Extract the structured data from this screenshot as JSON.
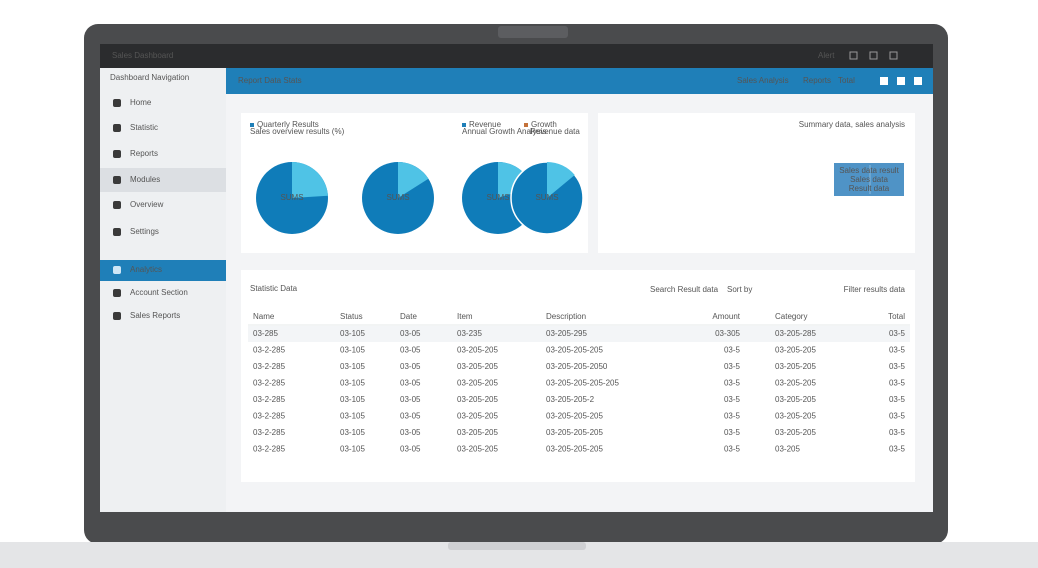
{
  "topbar": {
    "title": "Sales Dashboard",
    "items": [
      "Alert"
    ]
  },
  "sidebar": {
    "header": "Dashboard Navigation",
    "items": [
      "Home",
      "Statistic",
      "Reports",
      "Modules",
      "Overview",
      "Settings"
    ],
    "active": "Analytics",
    "extra": [
      "Account Section",
      "Sales Reports"
    ]
  },
  "header": {
    "title": "Report Data Stats",
    "links": [
      "Sales Analysis",
      "Reports",
      "Total"
    ]
  },
  "pie_card": {
    "legend": [
      "Quarterly Results",
      "Revenue",
      "Growth"
    ],
    "legend_sub": [
      "Sales overview results (%)",
      "Annual Growth Analysis",
      "Revenue data"
    ]
  },
  "pies": [
    {
      "label": "SUMS",
      "value": 24
    },
    {
      "label": "SUMS",
      "value": 16
    },
    {
      "label": "SUMS",
      "value": 20
    },
    {
      "label": "SUMS",
      "value": 14
    }
  ],
  "summary_card": {
    "title": "Summary data, sales analysis",
    "box": [
      "Sales data result",
      "Sales data",
      "Result data"
    ]
  },
  "table": {
    "title": "Statistic Data",
    "controls": [
      "Search Result data",
      "Sort by",
      "Filter results data"
    ],
    "columns": [
      "Name",
      "Status",
      "Date",
      "Item",
      "Description",
      "Amount",
      "Category",
      "Total"
    ],
    "rows": [
      [
        "03-285",
        "03-105",
        "03-05",
        "03-235",
        "03-205-295",
        "03-305",
        "03-205-285",
        "03-5"
      ],
      [
        "03-2-285",
        "03-105",
        "03-05",
        "03-205-205",
        "03-205-205-205",
        "03-5",
        "03-205-205",
        "03-5"
      ],
      [
        "03-2-285",
        "03-105",
        "03-05",
        "03-205-205",
        "03-205-205-2050",
        "03-5",
        "03-205-205",
        "03-5"
      ],
      [
        "03-2-285",
        "03-105",
        "03-05",
        "03-205-205",
        "03-205-205-205-205",
        "03-5",
        "03-205-205",
        "03-5"
      ],
      [
        "03-2-285",
        "03-105",
        "03-05",
        "03-205-205",
        "03-205-205-2",
        "03-5",
        "03-205-205",
        "03-5"
      ],
      [
        "03-2-285",
        "03-105",
        "03-05",
        "03-205-205",
        "03-205-205-205",
        "03-5",
        "03-205-205",
        "03-5"
      ],
      [
        "03-2-285",
        "03-105",
        "03-05",
        "03-205-205",
        "03-205-205-205",
        "03-5",
        "03-205-205",
        "03-5"
      ],
      [
        "03-2-285",
        "03-105",
        "03-05",
        "03-205-205",
        "03-205-205-205",
        "03-5",
        "03-205",
        "03-5"
      ]
    ]
  }
}
